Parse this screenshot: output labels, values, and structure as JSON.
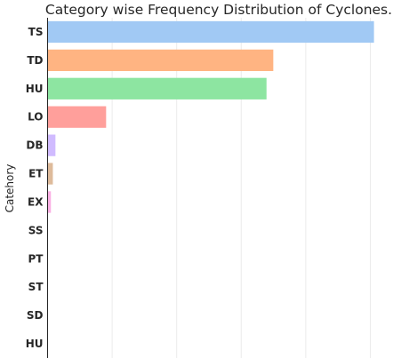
{
  "chart_data": {
    "type": "bar",
    "orientation": "horizontal",
    "title": "Category wise Frequency Distribution of Cyclones.",
    "xlabel": "",
    "ylabel": "Catehory",
    "categories": [
      "TS",
      "TD",
      "HU",
      "LO",
      "DB",
      "ET",
      "EX",
      "SS",
      "PT",
      "ST",
      "SD",
      "HU"
    ],
    "values": [
      10100,
      6980,
      6770,
      1800,
      230,
      150,
      90,
      3,
      2,
      1,
      1,
      1
    ],
    "xlim": [
      0,
      10400
    ],
    "grid": "vertical",
    "colors": [
      "#a1c9f4",
      "#ffb482",
      "#8de5a1",
      "#ff9f9b",
      "#d0bbff",
      "#debb9b",
      "#fab0e4",
      "#cfcfcf",
      "#fffea3",
      "#b9f2f0",
      "#a1c9f4",
      "#ffb482"
    ]
  }
}
